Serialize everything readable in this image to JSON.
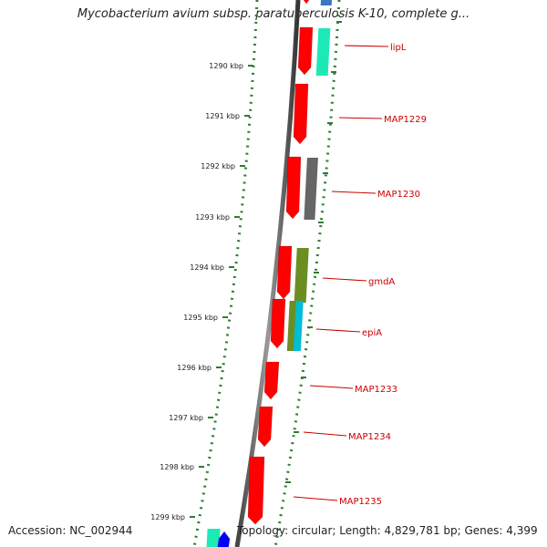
{
  "title": "Mycobacterium avium subsp. paratuberculosis K-10, complete g...",
  "accession": "Accession: NC_002944",
  "summary": "Topology: circular; Length: 4,829,781 bp; Genes: 4,399",
  "ticks": [
    "1290 kbp",
    "1291 kbp",
    "1292 kbp",
    "1293 kbp",
    "1294 kbp",
    "1295 kbp",
    "1296 kbp",
    "1297 kbp",
    "1298 kbp",
    "1299 kbp"
  ],
  "genes": [
    "lipL",
    "MAP1229",
    "MAP1230",
    "gmdA",
    "epiA",
    "MAP1233",
    "MAP1234",
    "MAP1235"
  ],
  "colors": {
    "gene_red": "#ff0000",
    "gene_green": "#1de9b6",
    "gene_gray": "#666666",
    "gene_olive": "#6b8e23",
    "gene_cyan": "#00bcd4",
    "gene_blue": "#0000ff",
    "tick_green": "#2e7d32",
    "label_red": "#cc0000"
  }
}
